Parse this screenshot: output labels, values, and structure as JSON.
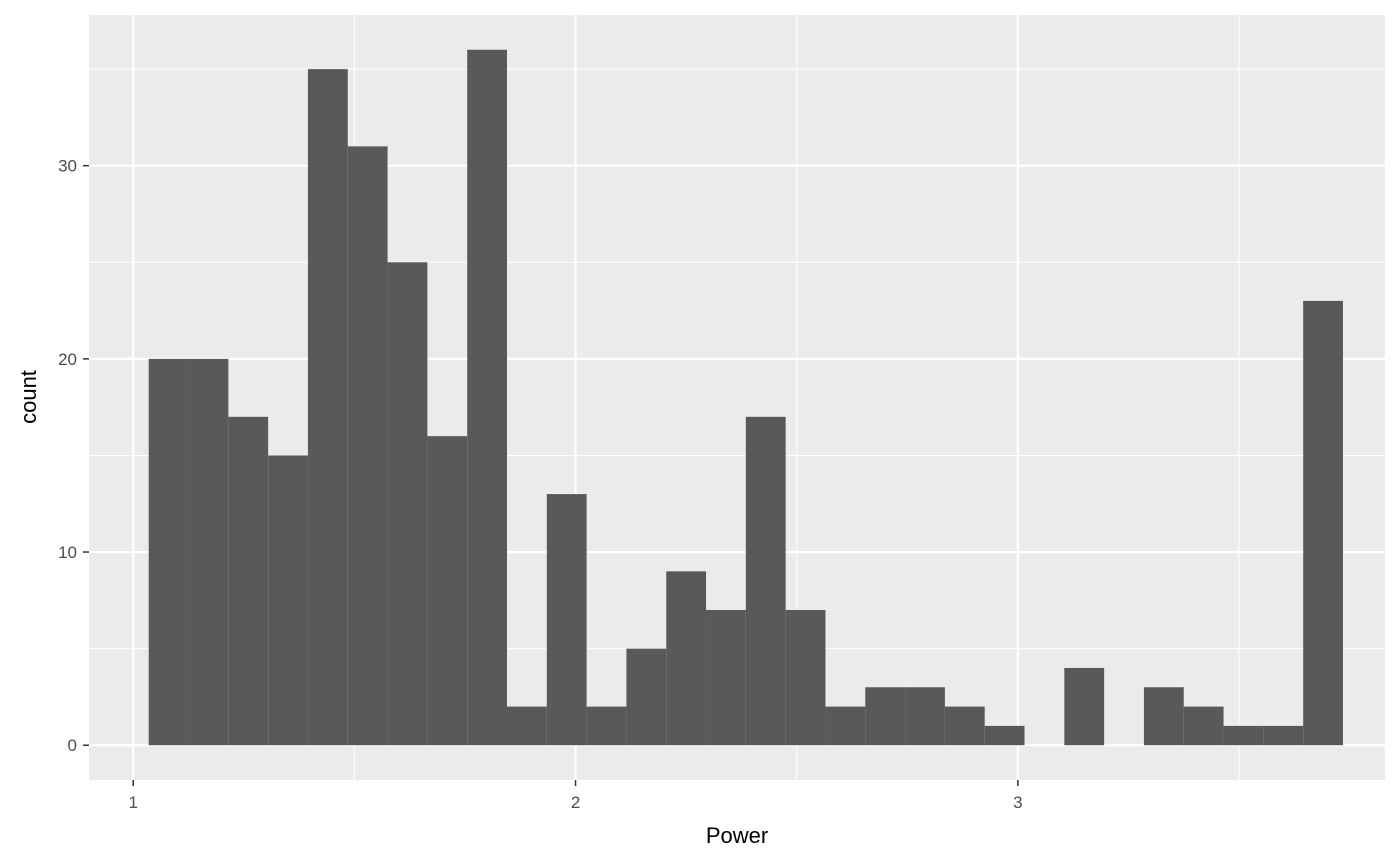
{
  "chart_data": {
    "type": "bar",
    "subtype": "histogram",
    "title": "",
    "xlabel": "Power",
    "ylabel": "count",
    "bin_width": 0.09,
    "x_first_bin_center": 1.08,
    "counts": [
      20,
      20,
      17,
      15,
      35,
      31,
      25,
      16,
      36,
      2,
      13,
      2,
      5,
      9,
      7,
      17,
      7,
      2,
      3,
      3,
      2,
      1,
      0,
      4,
      0,
      3,
      2,
      1,
      1,
      23
    ],
    "xlim": [
      0.9,
      3.83
    ],
    "ylim": [
      -1.8,
      37.8
    ],
    "x_major_ticks": [
      1,
      2,
      3
    ],
    "x_minor_ticks": [
      1.5,
      2.5,
      3.5
    ],
    "y_major_ticks": [
      0,
      10,
      20,
      30
    ],
    "y_minor_ticks": [
      5,
      15,
      25,
      35
    ],
    "x_tick_labels": [
      "1",
      "2",
      "3"
    ],
    "y_tick_labels": [
      "0",
      "10",
      "20",
      "30"
    ],
    "grid": true,
    "colors": {
      "panel": "#ebebeb",
      "grid": "#ffffff",
      "bar": "#595959",
      "tick": "#333333"
    }
  }
}
